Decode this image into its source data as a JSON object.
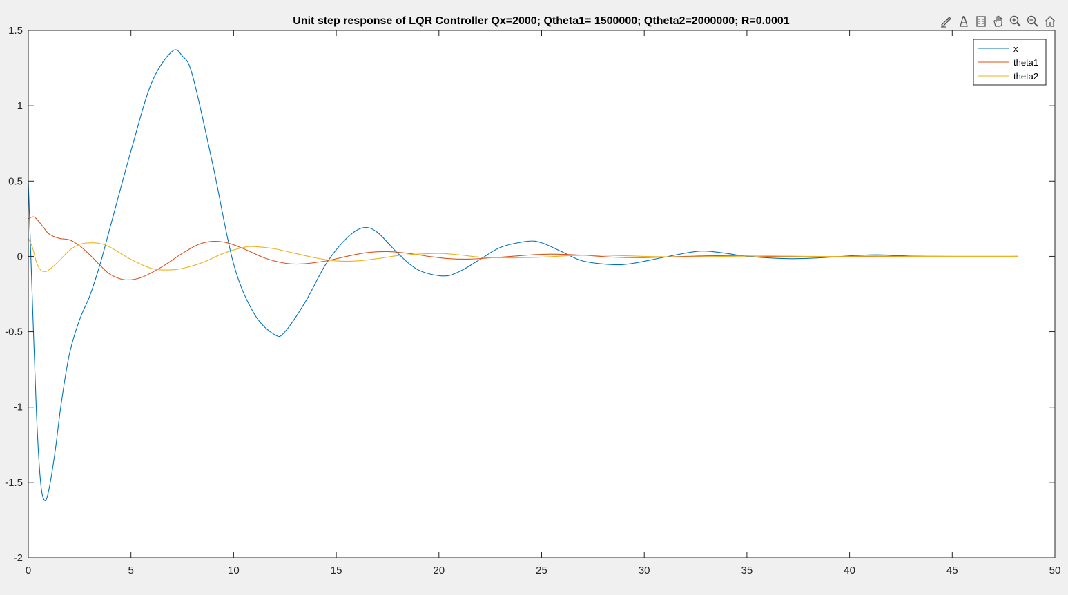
{
  "figure": {
    "title": "Unit step response of LQR Controller Qx=2000; Qtheta1= 1500000; Qtheta2=2000000; R=0.0001"
  },
  "toolbar": {
    "icons": [
      "brush-icon",
      "datatip-icon",
      "legend-toggle-icon",
      "pan-icon",
      "zoom-in-icon",
      "zoom-out-icon",
      "home-icon"
    ]
  },
  "chart_data": {
    "type": "line",
    "title": "Unit step response of LQR Controller Qx=2000; Qtheta1= 1500000; Qtheta2=2000000; R=0.0001",
    "xlabel": "",
    "ylabel": "",
    "xlim": [
      0,
      50
    ],
    "ylim": [
      -2,
      1.5
    ],
    "xticks": [
      0,
      5,
      10,
      15,
      20,
      25,
      30,
      35,
      40,
      45,
      50
    ],
    "yticks": [
      -2,
      -1.5,
      -1,
      -0.5,
      0,
      0.5,
      1,
      1.5
    ],
    "xtick_labels": [
      "0",
      "5",
      "10",
      "15",
      "20",
      "25",
      "30",
      "35",
      "40",
      "45",
      "50"
    ],
    "ytick_labels": [
      "-2",
      "-1.5",
      "-1",
      "-0.5",
      "0",
      "0.5",
      "1",
      "1.5"
    ],
    "grid": false,
    "legend_position": "top-right",
    "series": [
      {
        "name": "x",
        "color": "#0072BD",
        "points": [
          [
            0,
            0.5
          ],
          [
            0.2,
            -0.3
          ],
          [
            0.4,
            -1.05
          ],
          [
            0.6,
            -1.5
          ],
          [
            0.8,
            -1.62
          ],
          [
            1.0,
            -1.55
          ],
          [
            1.3,
            -1.3
          ],
          [
            1.6,
            -0.98
          ],
          [
            2.0,
            -0.65
          ],
          [
            2.5,
            -0.42
          ],
          [
            3.0,
            -0.26
          ],
          [
            3.5,
            -0.05
          ],
          [
            4.0,
            0.2
          ],
          [
            5.0,
            0.7
          ],
          [
            6.0,
            1.15
          ],
          [
            7.0,
            1.36
          ],
          [
            7.5,
            1.33
          ],
          [
            8.0,
            1.2
          ],
          [
            9.0,
            0.6
          ],
          [
            10.0,
            -0.05
          ],
          [
            11.0,
            -0.38
          ],
          [
            12.0,
            -0.52
          ],
          [
            12.5,
            -0.5
          ],
          [
            13.5,
            -0.3
          ],
          [
            14.5,
            -0.05
          ],
          [
            15.5,
            0.12
          ],
          [
            16.3,
            0.19
          ],
          [
            17.0,
            0.16
          ],
          [
            18.0,
            0.02
          ],
          [
            19.0,
            -0.09
          ],
          [
            20.2,
            -0.13
          ],
          [
            21.0,
            -0.1
          ],
          [
            22.0,
            -0.02
          ],
          [
            23.0,
            0.06
          ],
          [
            24.3,
            0.1
          ],
          [
            25.0,
            0.09
          ],
          [
            26.0,
            0.03
          ],
          [
            27.0,
            -0.03
          ],
          [
            28.5,
            -0.055
          ],
          [
            29.5,
            -0.045
          ],
          [
            31.0,
            -0.005
          ],
          [
            32.7,
            0.035
          ],
          [
            34.0,
            0.02
          ],
          [
            35.0,
            0.0
          ],
          [
            37.0,
            -0.015
          ],
          [
            38.5,
            -0.01
          ],
          [
            41.0,
            0.01
          ],
          [
            43.0,
            0.002
          ],
          [
            45.0,
            -0.004
          ],
          [
            47.0,
            -0.002
          ],
          [
            48.2,
            0.0
          ]
        ]
      },
      {
        "name": "theta1",
        "color": "#D95319",
        "points": [
          [
            0,
            0.25
          ],
          [
            0.3,
            0.26
          ],
          [
            0.7,
            0.2
          ],
          [
            1.0,
            0.15
          ],
          [
            1.5,
            0.12
          ],
          [
            2.0,
            0.11
          ],
          [
            2.5,
            0.07
          ],
          [
            3.0,
            0.01
          ],
          [
            3.5,
            -0.06
          ],
          [
            4.0,
            -0.12
          ],
          [
            4.7,
            -0.155
          ],
          [
            5.5,
            -0.14
          ],
          [
            6.5,
            -0.07
          ],
          [
            7.5,
            0.02
          ],
          [
            8.3,
            0.08
          ],
          [
            9.0,
            0.1
          ],
          [
            9.7,
            0.09
          ],
          [
            10.5,
            0.05
          ],
          [
            11.5,
            -0.01
          ],
          [
            12.5,
            -0.045
          ],
          [
            13.3,
            -0.05
          ],
          [
            14.5,
            -0.03
          ],
          [
            15.5,
            0.0
          ],
          [
            16.5,
            0.025
          ],
          [
            17.5,
            0.032
          ],
          [
            18.5,
            0.02
          ],
          [
            19.5,
            0.0
          ],
          [
            20.5,
            -0.015
          ],
          [
            21.5,
            -0.018
          ],
          [
            23.0,
            -0.005
          ],
          [
            24.5,
            0.01
          ],
          [
            25.5,
            0.015
          ],
          [
            27.0,
            0.008
          ],
          [
            28.5,
            -0.005
          ],
          [
            30.0,
            -0.008
          ],
          [
            32.0,
            0.0
          ],
          [
            34.0,
            0.005
          ],
          [
            36.0,
            0.0
          ],
          [
            38.0,
            -0.003
          ],
          [
            40.0,
            0.0
          ],
          [
            42.0,
            0.002
          ],
          [
            45.0,
            0.0
          ],
          [
            48.2,
            0.0
          ]
        ]
      },
      {
        "name": "theta2",
        "color": "#EDB120",
        "points": [
          [
            0,
            0.12
          ],
          [
            0.2,
            0.06
          ],
          [
            0.4,
            -0.04
          ],
          [
            0.6,
            -0.09
          ],
          [
            0.8,
            -0.1
          ],
          [
            1.0,
            -0.09
          ],
          [
            1.5,
            -0.03
          ],
          [
            2.0,
            0.04
          ],
          [
            2.5,
            0.08
          ],
          [
            3.0,
            0.09
          ],
          [
            3.5,
            0.085
          ],
          [
            4.0,
            0.06
          ],
          [
            5.0,
            -0.02
          ],
          [
            6.0,
            -0.08
          ],
          [
            6.8,
            -0.09
          ],
          [
            7.5,
            -0.08
          ],
          [
            8.5,
            -0.04
          ],
          [
            9.5,
            0.02
          ],
          [
            10.5,
            0.06
          ],
          [
            11.0,
            0.065
          ],
          [
            12.0,
            0.05
          ],
          [
            13.0,
            0.02
          ],
          [
            14.0,
            -0.01
          ],
          [
            15.0,
            -0.03
          ],
          [
            16.0,
            -0.03
          ],
          [
            17.0,
            -0.015
          ],
          [
            18.0,
            0.005
          ],
          [
            19.0,
            0.015
          ],
          [
            20.0,
            0.02
          ],
          [
            21.0,
            0.01
          ],
          [
            22.0,
            -0.005
          ],
          [
            23.5,
            -0.01
          ],
          [
            25.0,
            -0.005
          ],
          [
            26.5,
            0.005
          ],
          [
            28.0,
            0.008
          ],
          [
            30.0,
            0.0
          ],
          [
            32.0,
            -0.004
          ],
          [
            34.0,
            0.0
          ],
          [
            36.0,
            0.003
          ],
          [
            38.0,
            0.0
          ],
          [
            41.0,
            -0.002
          ],
          [
            44.0,
            0.0
          ],
          [
            48.2,
            0.0
          ]
        ]
      }
    ]
  }
}
